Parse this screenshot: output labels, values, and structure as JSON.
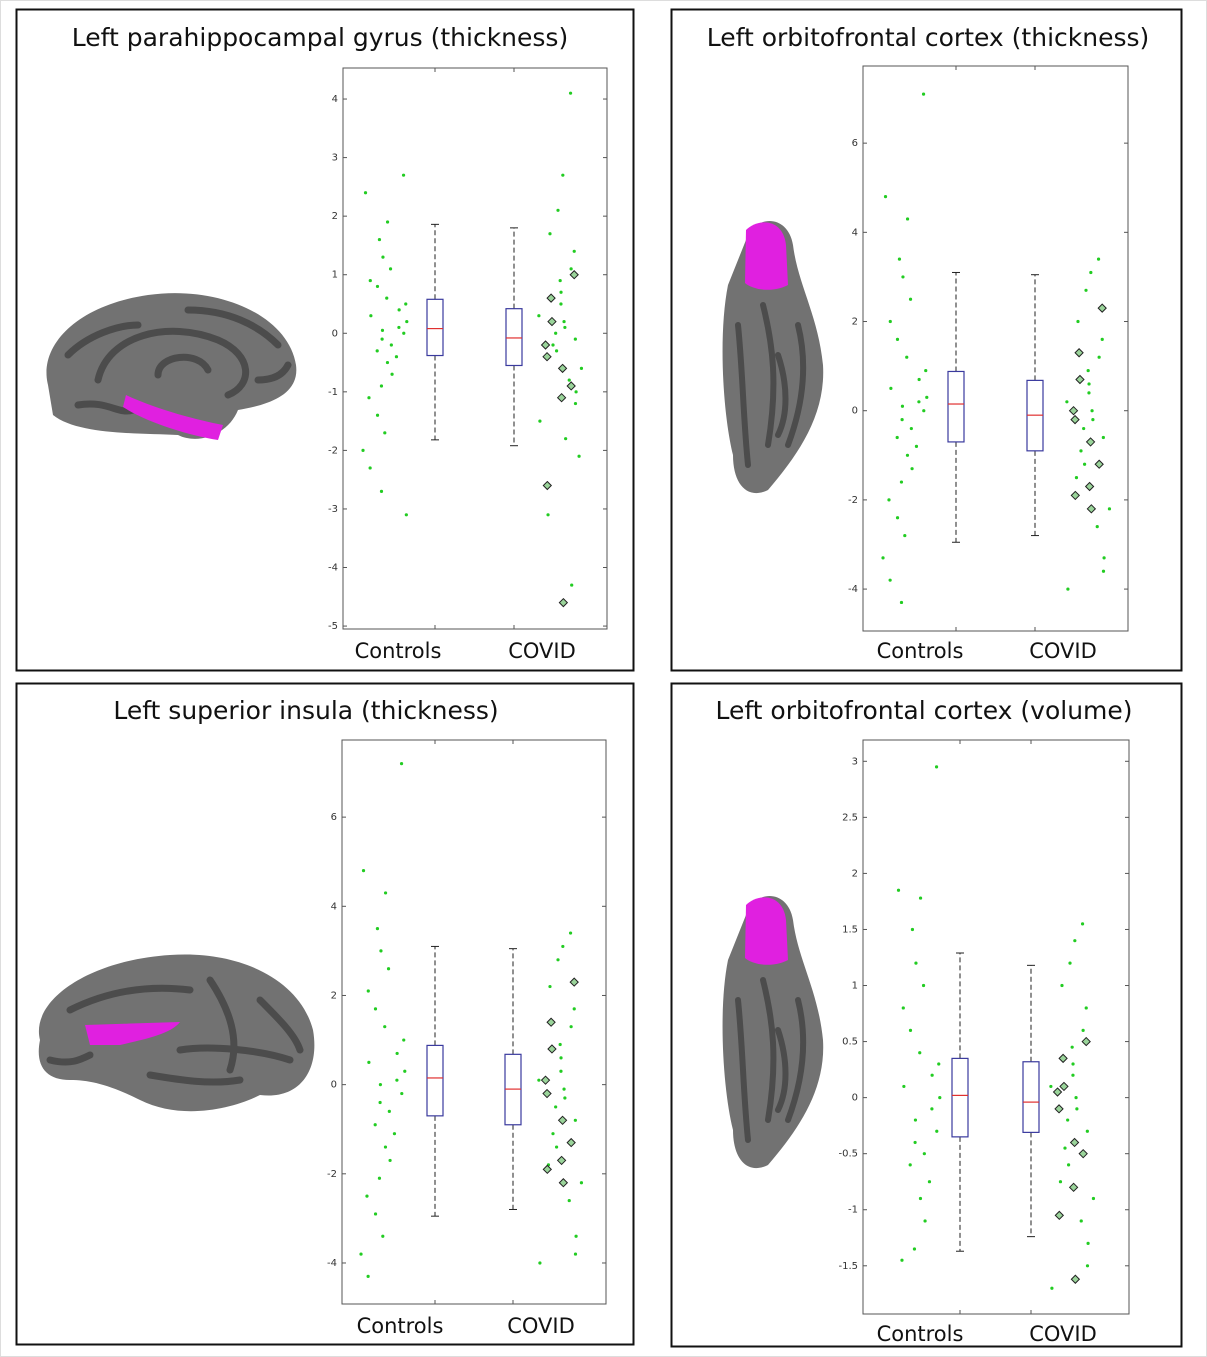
{
  "chart_data": [
    {
      "type": "box",
      "title": "Left parahippocampal gyrus (thickness)",
      "categories": [
        "Controls",
        "COVID"
      ],
      "ylim": [
        -5.05,
        4.53
      ],
      "yticks": [
        -5,
        -4,
        -3,
        -2,
        -1,
        0,
        1,
        2,
        3,
        4
      ],
      "box_color": "#3a3a9e",
      "median_color": "#e03030",
      "point_color": "#22cc22",
      "boxes": [
        [
          -1.82,
          -0.38,
          0.08,
          0.58,
          1.86
        ],
        [
          -1.92,
          -0.55,
          -0.08,
          0.42,
          1.8
        ]
      ],
      "points": [
        [
          2.7,
          2.4,
          1.9,
          1.6,
          1.3,
          1.1,
          0.9,
          0.8,
          0.6,
          0.5,
          0.4,
          0.3,
          0.2,
          0.1,
          0.05,
          0,
          -0.1,
          -0.2,
          -0.3,
          -0.4,
          -0.5,
          -0.7,
          -0.9,
          -1.1,
          -1.4,
          -1.7,
          -2.0,
          -2.3,
          -2.7,
          -3.1
        ],
        [
          4.1,
          2.7,
          2.1,
          1.7,
          1.4,
          1.1,
          0.9,
          0.7,
          0.5,
          0.3,
          0.2,
          0.1,
          0,
          -0.1,
          -0.2,
          -0.3,
          -0.4,
          -0.6,
          -0.8,
          -1.0,
          -1.2,
          -1.5,
          -1.8,
          -2.1,
          -3.1,
          -4.3
        ]
      ],
      "highlighted": [
        [],
        [
          1.0,
          0.6,
          0.2,
          -0.2,
          -0.4,
          -0.6,
          -0.9,
          -1.1,
          -2.6,
          -4.6
        ]
      ]
    },
    {
      "type": "box",
      "title": "Left orbitofrontal cortex (thickness)",
      "categories": [
        "Controls",
        "COVID"
      ],
      "ylim": [
        -4.94,
        7.73
      ],
      "yticks": [
        -4,
        -2,
        0,
        2,
        4,
        6
      ],
      "box_color": "#3a3a9e",
      "median_color": "#e03030",
      "point_color": "#22cc22",
      "boxes": [
        [
          -2.95,
          -0.7,
          0.15,
          0.88,
          3.1
        ],
        [
          -2.8,
          -0.9,
          -0.1,
          0.68,
          3.05
        ]
      ],
      "points": [
        [
          7.1,
          4.8,
          4.3,
          3.4,
          3.0,
          2.5,
          2.0,
          1.6,
          1.2,
          0.9,
          0.7,
          0.5,
          0.3,
          0.2,
          0.1,
          0,
          -0.2,
          -0.4,
          -0.6,
          -0.8,
          -1.0,
          -1.3,
          -1.6,
          -2.0,
          -2.4,
          -2.8,
          -3.3,
          -3.8,
          -4.3
        ],
        [
          3.4,
          3.1,
          2.7,
          2.0,
          1.6,
          1.2,
          0.9,
          0.6,
          0.4,
          0.2,
          0,
          -0.2,
          -0.4,
          -0.6,
          -0.9,
          -1.2,
          -1.5,
          -2.2,
          -2.6,
          -3.3,
          -3.6,
          -4.0
        ]
      ],
      "highlighted": [
        [],
        [
          2.3,
          1.3,
          0.7,
          0,
          -0.2,
          -0.7,
          -1.2,
          -1.7,
          -1.9,
          -2.2
        ]
      ]
    },
    {
      "type": "box",
      "title": "Left superior insula (thickness)",
      "categories": [
        "Controls",
        "COVID"
      ],
      "ylim": [
        -4.92,
        7.73
      ],
      "yticks": [
        -4,
        -2,
        0,
        2,
        4,
        6
      ],
      "box_color": "#3a3a9e",
      "median_color": "#e03030",
      "point_color": "#22cc22",
      "boxes": [
        [
          -2.95,
          -0.7,
          0.15,
          0.88,
          3.1
        ],
        [
          -2.8,
          -0.9,
          -0.1,
          0.68,
          3.05
        ]
      ],
      "points": [
        [
          7.2,
          4.8,
          4.3,
          3.5,
          3.0,
          2.6,
          2.1,
          1.7,
          1.3,
          1.0,
          0.7,
          0.5,
          0.3,
          0.1,
          0,
          -0.2,
          -0.4,
          -0.6,
          -0.9,
          -1.1,
          -1.4,
          -1.7,
          -2.1,
          -2.5,
          -2.9,
          -3.4,
          -3.8,
          -4.3
        ],
        [
          3.4,
          3.1,
          2.8,
          2.2,
          1.7,
          1.3,
          0.9,
          0.6,
          0.3,
          0.1,
          -0.1,
          -0.3,
          -0.5,
          -0.8,
          -1.1,
          -1.4,
          -1.8,
          -2.2,
          -2.6,
          -3.4,
          -3.8,
          -4.0
        ]
      ],
      "highlighted": [
        [],
        [
          2.3,
          1.4,
          0.8,
          0.1,
          -0.2,
          -0.8,
          -1.3,
          -1.7,
          -1.9,
          -2.2
        ]
      ]
    },
    {
      "type": "box",
      "title": "Left orbitofrontal cortex (volume)",
      "categories": [
        "Controls",
        "COVID"
      ],
      "ylim": [
        -1.93,
        3.19
      ],
      "yticks": [
        -1.5,
        -1,
        -0.5,
        0,
        0.5,
        1,
        1.5,
        2,
        2.5,
        3
      ],
      "box_color": "#3a3a9e",
      "median_color": "#e03030",
      "point_color": "#22cc22",
      "boxes": [
        [
          -1.37,
          -0.35,
          0.02,
          0.35,
          1.29
        ],
        [
          -1.24,
          -0.31,
          -0.04,
          0.32,
          1.18
        ]
      ],
      "points": [
        [
          2.95,
          1.85,
          1.78,
          1.5,
          1.2,
          1.0,
          0.8,
          0.6,
          0.4,
          0.3,
          0.2,
          0.1,
          0,
          -0.1,
          -0.2,
          -0.3,
          -0.4,
          -0.5,
          -0.6,
          -0.75,
          -0.9,
          -1.1,
          -1.35,
          -1.45
        ],
        [
          1.55,
          1.4,
          1.2,
          1.0,
          0.8,
          0.6,
          0.45,
          0.3,
          0.2,
          0.1,
          0,
          -0.1,
          -0.2,
          -0.3,
          -0.45,
          -0.6,
          -0.75,
          -0.9,
          -1.1,
          -1.3,
          -1.5,
          -1.7
        ]
      ],
      "highlighted": [
        [],
        [
          0.5,
          0.35,
          0.1,
          0.05,
          -0.1,
          -0.4,
          -0.5,
          -0.8,
          -1.05,
          -1.62
        ]
      ]
    }
  ]
}
